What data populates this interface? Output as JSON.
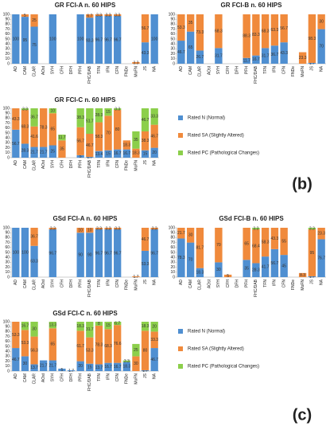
{
  "panel_labels": [
    "(b)",
    "(c)"
  ],
  "chart_data": [
    {
      "type": "stacked_bar",
      "title": "GR FCI-A n. 60 HIPS",
      "categories": [
        "AD",
        "CAM",
        "CLAR",
        "AOst",
        "SYH",
        "CFH",
        "DFH",
        "PFH",
        "FHC/DAB",
        "TFN",
        "IFN",
        "CFN",
        "FNDe",
        "MoFN",
        "JS",
        "NA"
      ],
      "series": [
        {
          "color": "#4f8fd1",
          "values": [
            100,
            95,
            75,
            0,
            100,
            0,
            0,
            100,
            93.3,
            96.7,
            96.7,
            96.7,
            0,
            0,
            43.3,
            100
          ]
        },
        {
          "color": "#f08a3c",
          "values": [
            0,
            5,
            25,
            0,
            0,
            0,
            0,
            0,
            6.7,
            3.3,
            3.3,
            3.3,
            0,
            3.3,
            56.7,
            0
          ]
        }
      ],
      "ylim": [
        0,
        100
      ],
      "yticks": [
        0,
        10,
        20,
        30,
        40,
        50,
        60,
        70,
        80,
        90,
        100
      ]
    },
    {
      "type": "stacked_bar",
      "title": "GR FCI-B n. 60 HIPS",
      "categories": [
        "AD",
        "CAM",
        "CLAR",
        "AOst",
        "SYH",
        "CFH",
        "DFH",
        "PFH",
        "FHC/DAB",
        "TFN",
        "IFN",
        "CFN",
        "FNDe",
        "MoFN",
        "JS",
        "NA"
      ],
      "series": [
        {
          "color": "#4f8fd1",
          "values": [
            46.7,
            65,
            26.7,
            0,
            31.7,
            0,
            0,
            11.7,
            16.7,
            31.7,
            36.7,
            43.3,
            0,
            0,
            1.7,
            70
          ]
        },
        {
          "color": "#f08a3c",
          "values": [
            53.3,
            35,
            73.3,
            0,
            68.3,
            0,
            0,
            88.3,
            83.3,
            68.3,
            63.3,
            56.7,
            0,
            23.3,
            98.3,
            30
          ]
        }
      ],
      "ylim": [
        0,
        100
      ],
      "yticks": [
        0,
        10,
        20,
        30,
        40,
        50,
        60,
        70,
        80,
        90,
        100
      ]
    },
    {
      "type": "stacked_bar",
      "title": "GR FCI-C n. 60 HIPS",
      "categories": [
        "AD",
        "CAM",
        "CLAR",
        "AOst",
        "SYH",
        "CFH",
        "DFH",
        "PFH",
        "FHC/DAB",
        "TFN",
        "IFN",
        "CFN",
        "FNDe",
        "MoFN",
        "JS",
        "NA"
      ],
      "series": [
        {
          "name": "Rated N (Normal)",
          "color": "#4f8fd1",
          "values": [
            56.7,
            28.3,
            21.7,
            21.7,
            25,
            0,
            0,
            5,
            1.7,
            13.4,
            15,
            16.7,
            16.7,
            0,
            15,
            20
          ]
        },
        {
          "name": "Rated SA (Slightly Altered)",
          "color": "#f08a3c",
          "values": [
            43.3,
            68.3,
            41.6,
            78.3,
            65,
            35,
            0,
            56.7,
            46.7,
            58.3,
            70,
            80,
            18.3,
            18.3,
            38.3,
            46.7
          ]
        },
        {
          "name": "Rated PC (Pathological Changes)",
          "color": "#8ccf4b",
          "values": [
            0,
            3.3,
            36.7,
            0,
            10,
            11.7,
            0,
            38.3,
            51.7,
            28.3,
            15,
            3.3,
            0,
            35,
            46.7,
            33.3
          ]
        }
      ],
      "ylim": [
        0,
        100
      ],
      "yticks": [
        0,
        10,
        20,
        30,
        40,
        50,
        60,
        70,
        80,
        90,
        100
      ],
      "legend": "right"
    },
    {
      "type": "stacked_bar",
      "title": "GSd FCI-A n. 60 HIPS",
      "categories": [
        "AD",
        "CAM",
        "CLAR",
        "AOst",
        "SYH",
        "CFH",
        "DFH",
        "PFH",
        "FHC/DAB",
        "TFN",
        "IFN",
        "CFN",
        "FNDe",
        "MoFN",
        "JS",
        "NA"
      ],
      "series": [
        {
          "color": "#4f8fd1",
          "values": [
            100,
            100,
            63.3,
            0,
            96.7,
            0,
            0,
            90,
            90,
            96.7,
            96.7,
            96.7,
            0,
            0,
            53.3,
            96.7
          ]
        },
        {
          "color": "#f08a3c",
          "values": [
            0,
            0,
            36.7,
            0,
            3.3,
            0,
            0,
            10,
            10,
            3.3,
            3.3,
            3.3,
            0,
            1.7,
            46.7,
            3.3
          ]
        }
      ],
      "ylim": [
        0,
        100
      ],
      "yticks": [
        0,
        10,
        20,
        30,
        40,
        50,
        60,
        70,
        80,
        90,
        100
      ]
    },
    {
      "type": "stacked_bar",
      "title": "GSd FCI-B n. 60 HIPS",
      "categories": [
        "AD",
        "CAM",
        "CLAR",
        "AOst",
        "SYH",
        "CFH",
        "DFH",
        "PFH",
        "FHC/DAB",
        "TFN",
        "IFN",
        "CFN",
        "FNDe",
        "MoFN",
        "JS",
        "NA"
      ],
      "series": [
        {
          "color": "#4f8fd1",
          "values": [
            78.3,
            70,
            18.3,
            0,
            30,
            0,
            0,
            35,
            28.3,
            41.7,
            56.7,
            45,
            0,
            0,
            1.7,
            76.7
          ]
        },
        {
          "color": "#f08a3c",
          "values": [
            21.7,
            30,
            81.7,
            0,
            70,
            5,
            0,
            65,
            68.4,
            58.3,
            43.3,
            55,
            0,
            8.3,
            95,
            23.3
          ]
        },
        {
          "color": "#8ccf4b",
          "values": [
            0,
            0,
            0,
            0,
            0,
            0,
            0,
            0,
            3.3,
            0,
            0,
            0,
            0,
            0,
            3.3,
            0
          ]
        }
      ],
      "ylim": [
        0,
        100
      ],
      "yticks": [
        0,
        10,
        20,
        30,
        40,
        50,
        60,
        70,
        80,
        90,
        100
      ]
    },
    {
      "type": "stacked_bar",
      "title": "GSd FCI-C n. 60 HIPS",
      "categories": [
        "AD",
        "CAM",
        "CLAR",
        "AOst",
        "SYH",
        "CFH",
        "DFH",
        "PFH",
        "FHC/DAB",
        "TFN",
        "IFN",
        "CFN",
        "FNDe",
        "MoFN",
        "JS",
        "NA"
      ],
      "series": [
        {
          "name": "Rated N (Normal)",
          "color": "#4f8fd1",
          "values": [
            46.7,
            30,
            13.7,
            21.7,
            21.7,
            5,
            1.7,
            20,
            15,
            13.7,
            16.7,
            16.7,
            18.3,
            0,
            1.7,
            46.7
          ]
        },
        {
          "name": "Rated SA (Slightly Altered)",
          "color": "#f08a3c",
          "values": [
            53.3,
            53.3,
            56.3,
            0,
            65,
            0,
            0,
            61.7,
            53.3,
            78.3,
            68.3,
            76.6,
            0,
            30,
            80,
            33.3
          ]
        },
        {
          "name": "Rated PC (Pathological Changes)",
          "color": "#8ccf4b",
          "values": [
            0,
            16.7,
            30,
            0,
            13.3,
            0,
            0,
            18.3,
            31.7,
            8,
            15,
            6.7,
            3.3,
            25,
            18.3,
            20
          ]
        }
      ],
      "ylim": [
        0,
        100
      ],
      "yticks": [
        0,
        10,
        20,
        30,
        40,
        50,
        60,
        70,
        80,
        90,
        100
      ],
      "legend": "right"
    }
  ]
}
